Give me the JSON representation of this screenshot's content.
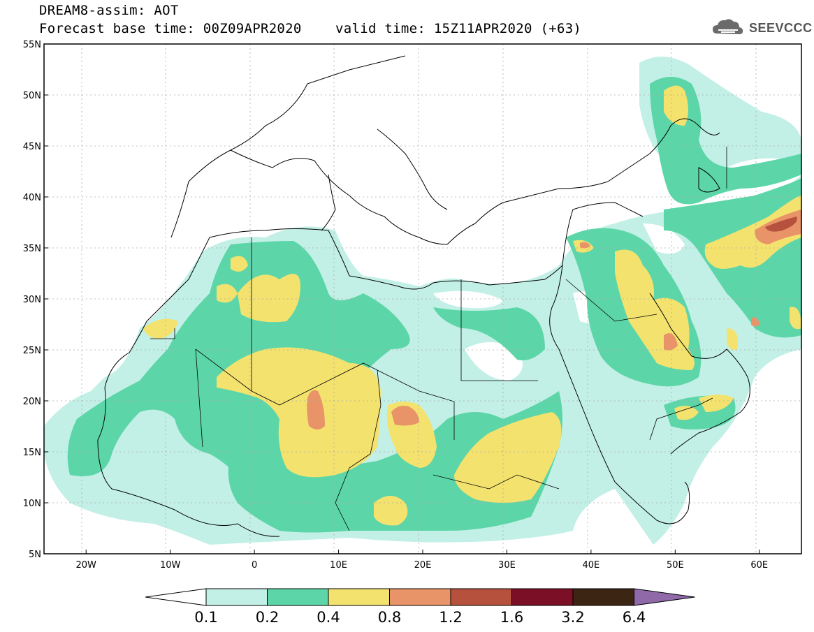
{
  "header": {
    "title": "DREAM8-assim: AOT",
    "base_time": "Forecast base time: 00Z09APR2020",
    "valid_time": "valid time: 15Z11APR2020 (+63)"
  },
  "logo": {
    "text": "SEEVCCC",
    "icon": "cloud-logo-icon"
  },
  "map": {
    "lon_range": [
      -25,
      65
    ],
    "lat_range": [
      5,
      55
    ],
    "lat_ticks": [
      {
        "value": 55,
        "label": "55N"
      },
      {
        "value": 50,
        "label": "50N"
      },
      {
        "value": 45,
        "label": "45N"
      },
      {
        "value": 40,
        "label": "40N"
      },
      {
        "value": 35,
        "label": "35N"
      },
      {
        "value": 30,
        "label": "30N"
      },
      {
        "value": 25,
        "label": "25N"
      },
      {
        "value": 20,
        "label": "20N"
      },
      {
        "value": 15,
        "label": "15N"
      },
      {
        "value": 10,
        "label": "10N"
      },
      {
        "value": 5,
        "label": "5N"
      }
    ],
    "lon_ticks": [
      {
        "value": -20,
        "label": "20W"
      },
      {
        "value": -10,
        "label": "10W"
      },
      {
        "value": 0,
        "label": "0"
      },
      {
        "value": 10,
        "label": "10E"
      },
      {
        "value": 20,
        "label": "20E"
      },
      {
        "value": 30,
        "label": "30E"
      },
      {
        "value": 40,
        "label": "40E"
      },
      {
        "value": 50,
        "label": "50E"
      },
      {
        "value": 60,
        "label": "60E"
      }
    ],
    "grid": true
  },
  "colorbar": {
    "labels": [
      "0.1",
      "0.2",
      "0.4",
      "0.8",
      "1.2",
      "1.6",
      "3.2",
      "6.4"
    ],
    "colors": [
      "#ffffff",
      "#c2f0e6",
      "#5cd6a8",
      "#f4e26e",
      "#e89368",
      "#b6513e",
      "#7a0f25",
      "#3d2514",
      "#8f69a8"
    ]
  },
  "colors": {
    "c1": "#c2f0e6",
    "c2": "#5cd6a8",
    "c3": "#f4e26e",
    "c4": "#e89368",
    "c5": "#b6513e"
  }
}
